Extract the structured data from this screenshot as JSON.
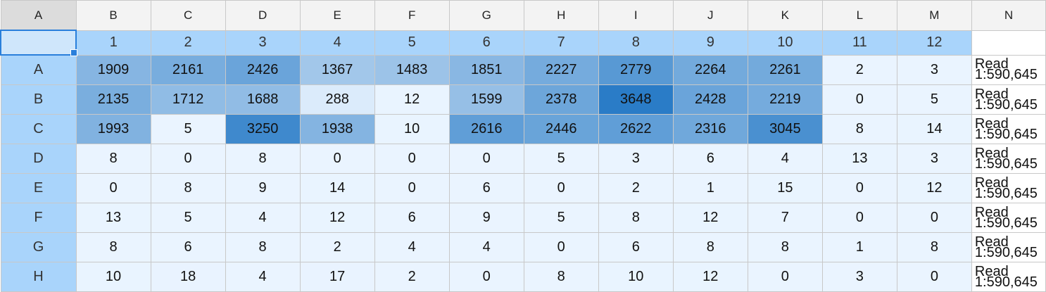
{
  "column_headers": [
    "A",
    "B",
    "C",
    "D",
    "E",
    "F",
    "G",
    "H",
    "I",
    "J",
    "K",
    "L",
    "M",
    "N"
  ],
  "plate_columns": [
    "1",
    "2",
    "3",
    "4",
    "5",
    "6",
    "7",
    "8",
    "9",
    "10",
    "11",
    "12"
  ],
  "rows": [
    {
      "label": "A",
      "values": [
        1909,
        2161,
        2426,
        1367,
        1483,
        1851,
        2227,
        2779,
        2264,
        2261,
        2,
        3
      ],
      "note_line1": "Read",
      "note_line2": "1:590,645"
    },
    {
      "label": "B",
      "values": [
        2135,
        1712,
        1688,
        288,
        12,
        1599,
        2378,
        3648,
        2428,
        2219,
        0,
        5
      ],
      "note_line1": "Read",
      "note_line2": "1:590,645"
    },
    {
      "label": "C",
      "values": [
        1993,
        5,
        3250,
        1938,
        10,
        2616,
        2446,
        2622,
        2316,
        3045,
        8,
        14
      ],
      "note_line1": "Read",
      "note_line2": "1:590,645"
    },
    {
      "label": "D",
      "values": [
        8,
        0,
        8,
        0,
        0,
        0,
        5,
        3,
        6,
        4,
        13,
        3
      ],
      "note_line1": "Read",
      "note_line2": "1:590,645"
    },
    {
      "label": "E",
      "values": [
        0,
        8,
        9,
        14,
        0,
        6,
        0,
        2,
        1,
        15,
        0,
        12
      ],
      "note_line1": "Read",
      "note_line2": "1:590,645"
    },
    {
      "label": "F",
      "values": [
        13,
        5,
        4,
        12,
        6,
        9,
        5,
        8,
        12,
        7,
        0,
        0
      ],
      "note_line1": "Read",
      "note_line2": "1:590,645"
    },
    {
      "label": "G",
      "values": [
        8,
        6,
        8,
        2,
        4,
        4,
        0,
        6,
        8,
        8,
        1,
        8
      ],
      "note_line1": "Read",
      "note_line2": "1:590,645"
    },
    {
      "label": "H",
      "values": [
        10,
        18,
        4,
        17,
        2,
        0,
        8,
        10,
        12,
        0,
        3,
        0
      ],
      "note_line1": "Read",
      "note_line2": "1:590,645"
    }
  ],
  "colors": {
    "scale_low": "#eaf4ff",
    "scale_high": "#2a7cc7",
    "header_blue": "#a9d4fb",
    "selection_border": "#2a7fdb"
  },
  "scale_max": 3648
}
